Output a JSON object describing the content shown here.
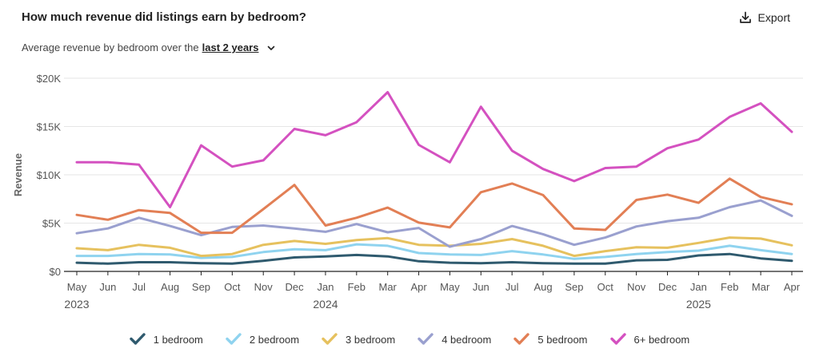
{
  "header": {
    "title": "How much revenue did listings earn by bedroom?",
    "export_label": "Export",
    "subtitle_prefix": "Average revenue by bedroom over the",
    "range_label": "last 2 years"
  },
  "colors": {
    "1 bedroom": "#2f5a6e",
    "2 bedroom": "#8fd3ef",
    "3 bedroom": "#e6c15e",
    "4 bedroom": "#9aa0cf",
    "5 bedroom": "#e27f55",
    "6+ bedroom": "#d451c0"
  },
  "chart_data": {
    "type": "line",
    "ylabel": "Revenue",
    "ylim": [
      0,
      20000
    ],
    "yticks": [
      0,
      5000,
      10000,
      15000,
      20000
    ],
    "ytick_labels": [
      "$0",
      "$5K",
      "$10K",
      "$15K",
      "$20K"
    ],
    "grid": true,
    "legend_position": "bottom",
    "x": [
      "May",
      "Jun",
      "Jul",
      "Aug",
      "Sep",
      "Oct",
      "Nov",
      "Dec",
      "Jan",
      "Feb",
      "Mar",
      "Apr",
      "May",
      "Jun",
      "Jul",
      "Aug",
      "Sep",
      "Oct",
      "Nov",
      "Dec",
      "Jan",
      "Feb",
      "Mar",
      "Apr"
    ],
    "year_labels": [
      {
        "index": 0,
        "label": "2023"
      },
      {
        "index": 8,
        "label": "2024"
      },
      {
        "index": 20,
        "label": "2025"
      }
    ],
    "series": [
      {
        "name": "1 bedroom",
        "values": [
          900,
          800,
          950,
          950,
          850,
          800,
          1100,
          1450,
          1550,
          1700,
          1550,
          1050,
          900,
          850,
          950,
          850,
          800,
          800,
          1150,
          1200,
          1650,
          1800,
          1350,
          1100
        ]
      },
      {
        "name": "2 bedroom",
        "values": [
          1600,
          1600,
          1800,
          1750,
          1400,
          1500,
          2000,
          2300,
          2200,
          2800,
          2650,
          1900,
          1750,
          1700,
          2100,
          1750,
          1300,
          1500,
          1800,
          2000,
          2150,
          2650,
          2200,
          1800
        ]
      },
      {
        "name": "3 bedroom",
        "values": [
          2400,
          2200,
          2750,
          2450,
          1600,
          1800,
          2750,
          3150,
          2850,
          3250,
          3450,
          2750,
          2650,
          2850,
          3350,
          2650,
          1600,
          2100,
          2500,
          2450,
          2950,
          3500,
          3400,
          2700
        ]
      },
      {
        "name": "4 bedroom",
        "values": [
          3950,
          4450,
          5550,
          4700,
          3750,
          4600,
          4750,
          4450,
          4100,
          4900,
          4050,
          4500,
          2550,
          3350,
          4700,
          3850,
          2750,
          3500,
          4650,
          5200,
          5550,
          6650,
          7350,
          5750
        ]
      },
      {
        "name": "5 bedroom",
        "values": [
          5850,
          5350,
          6350,
          6050,
          4000,
          4000,
          6450,
          8950,
          4750,
          5550,
          6600,
          5050,
          4550,
          8200,
          9100,
          7900,
          4450,
          4300,
          7400,
          7950,
          7100,
          9600,
          7700,
          6950
        ]
      },
      {
        "name": "6+ bedroom",
        "values": [
          11300,
          11300,
          11050,
          6650,
          13050,
          10850,
          11500,
          14750,
          14100,
          15450,
          18550,
          13100,
          11300,
          17050,
          12500,
          10600,
          9350,
          10700,
          10850,
          12750,
          13650,
          16000,
          17400,
          14450
        ]
      }
    ]
  }
}
